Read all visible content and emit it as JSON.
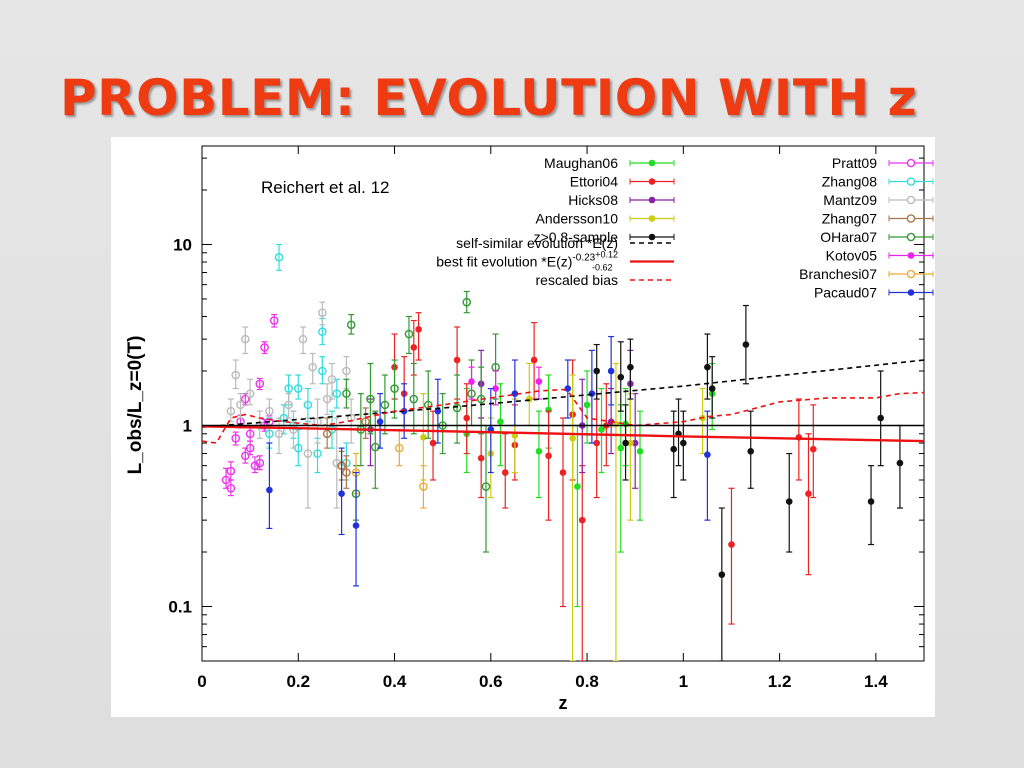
{
  "slide": {
    "title": "PROBLEM: EVOLUTION WITH z",
    "title_color": "#ee3b12"
  },
  "chart_data": {
    "type": "scatter",
    "annotation": "Reichert et al. 12",
    "xlabel": "z",
    "ylabel": "L_obs/L_z=0(T)",
    "x_scale": "linear",
    "y_scale": "log",
    "xlim": [
      0,
      1.5
    ],
    "ylim": [
      0.05,
      35
    ],
    "x_ticks": [
      0,
      0.2,
      0.4,
      0.6,
      0.8,
      1,
      1.2,
      1.4
    ],
    "y_ticks": [
      0.1,
      1,
      10
    ],
    "legend_position": "top",
    "series": [
      {
        "name": "Maughan06",
        "color": "#22dd22",
        "marker": "filled",
        "points": [
          [
            0.55,
            0.9,
            0.55,
            1.6
          ],
          [
            0.62,
            1.05,
            0.6,
            1.7
          ],
          [
            0.7,
            0.72,
            0.4,
            1.2
          ],
          [
            0.72,
            1.22,
            0.75,
            1.9
          ],
          [
            0.78,
            0.46,
            0.1,
            1.0
          ],
          [
            0.8,
            1.3,
            0.8,
            2.0
          ],
          [
            0.83,
            0.95,
            0.55,
            1.6
          ],
          [
            0.87,
            0.75,
            0.2,
            1.3
          ],
          [
            0.88,
            1.02,
            0.6,
            1.6
          ],
          [
            0.91,
            0.72,
            0.3,
            1.2
          ],
          [
            1.06,
            1.5,
            0.95,
            2.2
          ]
        ]
      },
      {
        "name": "Ettori04",
        "color": "#ee2222",
        "marker": "filled",
        "points": [
          [
            0.4,
            2.1,
            1.4,
            3.2
          ],
          [
            0.42,
            1.5,
            1.0,
            2.4
          ],
          [
            0.45,
            3.4,
            2.3,
            4.2
          ],
          [
            0.44,
            2.7,
            1.9,
            3.8
          ],
          [
            0.48,
            0.8,
            0.5,
            1.2
          ],
          [
            0.53,
            2.3,
            1.4,
            3.5
          ],
          [
            0.55,
            1.1,
            0.7,
            1.7
          ],
          [
            0.58,
            0.66,
            0.4,
            1.1
          ],
          [
            0.63,
            0.55,
            0.35,
            0.9
          ],
          [
            0.65,
            0.78,
            0.5,
            1.3
          ],
          [
            0.69,
            2.3,
            1.4,
            3.7
          ],
          [
            0.72,
            0.68,
            0.3,
            1.2
          ],
          [
            0.75,
            0.55,
            0.1,
            1.1
          ],
          [
            0.77,
            1.15,
            0.5,
            2.3
          ],
          [
            0.79,
            0.3,
            0.05,
            0.6
          ],
          [
            0.82,
            0.8,
            0.4,
            1.5
          ],
          [
            0.84,
            1.0,
            0.6,
            1.7
          ],
          [
            1.1,
            0.22,
            0.08,
            0.45
          ],
          [
            1.24,
            0.86,
            0.5,
            1.4
          ],
          [
            1.26,
            0.42,
            0.15,
            0.9
          ],
          [
            1.27,
            0.74,
            0.4,
            1.3
          ]
        ]
      },
      {
        "name": "Hicks08",
        "color": "#8822aa",
        "marker": "filled",
        "points": [
          [
            0.35,
            0.95,
            0.6,
            1.4
          ],
          [
            0.58,
            1.7,
            1.1,
            2.6
          ],
          [
            0.79,
            1.0,
            0.55,
            1.8
          ],
          [
            0.85,
            1.05,
            0.7,
            1.6
          ],
          [
            0.89,
            1.7,
            1.0,
            2.6
          ],
          [
            0.9,
            0.8,
            0.45,
            1.5
          ]
        ]
      },
      {
        "name": "Andersson10",
        "color": "#cccc11",
        "marker": "filled",
        "points": [
          [
            0.46,
            0.86,
            0.5,
            1.5
          ],
          [
            0.6,
            0.7,
            0.4,
            1.1
          ],
          [
            0.65,
            0.88,
            0.55,
            1.4
          ],
          [
            0.68,
            1.4,
            1.0,
            2.2
          ],
          [
            0.77,
            0.85,
            0.05,
            1.9
          ],
          [
            0.86,
            1.02,
            0.05,
            2.2
          ],
          [
            0.89,
            0.8,
            0.3,
            1.5
          ],
          [
            1.04,
            1.1,
            0.7,
            1.6
          ]
        ]
      },
      {
        "name": "z>0.8-sample",
        "color": "#111111",
        "marker": "filled",
        "points": [
          [
            0.82,
            2.0,
            1.4,
            2.8
          ],
          [
            0.87,
            1.85,
            1.2,
            2.9
          ],
          [
            0.89,
            2.1,
            1.4,
            3.0
          ],
          [
            0.88,
            0.8,
            0.5,
            1.3
          ],
          [
            0.98,
            0.74,
            0.4,
            1.2
          ],
          [
            0.99,
            0.9,
            0.6,
            1.4
          ],
          [
            1.0,
            0.8,
            0.5,
            1.2
          ],
          [
            1.05,
            2.1,
            1.4,
            3.2
          ],
          [
            1.06,
            1.6,
            1.1,
            2.4
          ],
          [
            1.08,
            0.15,
            0.05,
            0.35
          ],
          [
            1.13,
            2.8,
            1.7,
            4.6
          ],
          [
            1.14,
            0.72,
            0.45,
            1.2
          ],
          [
            1.22,
            0.38,
            0.2,
            0.7
          ],
          [
            1.39,
            0.38,
            0.22,
            0.6
          ],
          [
            1.41,
            1.1,
            0.6,
            2.0
          ],
          [
            1.45,
            0.62,
            0.35,
            1.0
          ]
        ]
      },
      {
        "name": "Pratt09",
        "color": "#ee33ee",
        "marker": "open",
        "points": [
          [
            0.05,
            0.5,
            0.45,
            0.58
          ],
          [
            0.06,
            0.56,
            0.5,
            0.63
          ],
          [
            0.07,
            0.85,
            0.78,
            0.92
          ],
          [
            0.08,
            1.05,
            0.97,
            1.14
          ],
          [
            0.09,
            0.68,
            0.62,
            0.75
          ],
          [
            0.1,
            0.9,
            0.82,
            0.98
          ],
          [
            0.11,
            0.6,
            0.55,
            0.67
          ],
          [
            0.12,
            1.7,
            1.58,
            1.82
          ],
          [
            0.13,
            2.7,
            2.5,
            2.9
          ],
          [
            0.14,
            1.05,
            0.97,
            1.13
          ],
          [
            0.15,
            3.8,
            3.5,
            4.1
          ],
          [
            0.09,
            1.4,
            1.3,
            1.5
          ],
          [
            0.12,
            0.62,
            0.57,
            0.68
          ],
          [
            0.06,
            0.45,
            0.41,
            0.5
          ],
          [
            0.1,
            0.75,
            0.69,
            0.82
          ],
          [
            0.13,
            1.0,
            0.93,
            1.08
          ]
        ]
      },
      {
        "name": "Zhang08",
        "color": "#33dddd",
        "marker": "open",
        "points": [
          [
            0.16,
            8.5,
            7.2,
            10
          ],
          [
            0.14,
            0.9,
            0.75,
            1.1
          ],
          [
            0.17,
            1.1,
            0.9,
            1.3
          ],
          [
            0.18,
            1.6,
            1.3,
            1.9
          ],
          [
            0.2,
            0.75,
            0.6,
            0.95
          ],
          [
            0.22,
            1.3,
            1.05,
            1.6
          ],
          [
            0.25,
            3.3,
            2.8,
            3.9
          ],
          [
            0.25,
            2.0,
            1.7,
            2.4
          ],
          [
            0.27,
            0.95,
            0.75,
            1.2
          ],
          [
            0.28,
            1.5,
            1.25,
            1.8
          ],
          [
            0.3,
            0.62,
            0.5,
            0.8
          ],
          [
            0.2,
            1.6,
            1.4,
            1.9
          ],
          [
            0.24,
            0.7,
            0.55,
            0.85
          ],
          [
            0.19,
            1.0,
            0.85,
            1.2
          ]
        ]
      },
      {
        "name": "Mantz09",
        "color": "#bbbbbb",
        "marker": "open",
        "points": [
          [
            0.07,
            1.9,
            1.6,
            2.3
          ],
          [
            0.09,
            3.0,
            2.5,
            3.5
          ],
          [
            0.06,
            1.2,
            1.05,
            1.4
          ],
          [
            0.08,
            1.3,
            1.1,
            1.5
          ],
          [
            0.1,
            1.5,
            1.3,
            1.8
          ],
          [
            0.12,
            1.0,
            0.85,
            1.2
          ],
          [
            0.14,
            1.2,
            1.0,
            1.4
          ],
          [
            0.16,
            0.9,
            0.7,
            1.1
          ],
          [
            0.18,
            1.3,
            1.1,
            1.5
          ],
          [
            0.21,
            3.0,
            2.5,
            3.5
          ],
          [
            0.23,
            2.1,
            1.7,
            2.5
          ],
          [
            0.25,
            4.2,
            3.6,
            4.8
          ],
          [
            0.26,
            1.4,
            1.15,
            1.7
          ],
          [
            0.28,
            0.62,
            0.35,
            1.1
          ],
          [
            0.3,
            2.0,
            1.6,
            2.4
          ],
          [
            0.22,
            0.7,
            0.35,
            1.1
          ],
          [
            0.24,
            1.05,
            0.8,
            1.4
          ],
          [
            0.19,
            0.95,
            0.75,
            1.2
          ],
          [
            0.27,
            1.8,
            1.4,
            2.2
          ],
          [
            0.31,
            1.1,
            0.8,
            1.4
          ]
        ]
      },
      {
        "name": "Zhang07",
        "color": "#aa7744",
        "marker": "open",
        "points": [
          [
            0.3,
            0.55,
            0.45,
            0.68
          ],
          [
            0.29,
            0.6,
            0.5,
            0.72
          ],
          [
            0.26,
            0.9,
            0.75,
            1.1
          ],
          [
            0.34,
            1.05,
            0.85,
            1.25
          ]
        ]
      },
      {
        "name": "OHara07",
        "color": "#339933",
        "marker": "open",
        "points": [
          [
            0.31,
            3.6,
            3.2,
            4.1
          ],
          [
            0.3,
            1.5,
            1.25,
            1.8
          ],
          [
            0.33,
            0.95,
            0.6,
            1.5
          ],
          [
            0.35,
            1.4,
            0.9,
            2.2
          ],
          [
            0.36,
            0.76,
            0.45,
            1.2
          ],
          [
            0.38,
            1.3,
            0.9,
            1.9
          ],
          [
            0.4,
            1.6,
            1.1,
            2.3
          ],
          [
            0.43,
            3.2,
            2.5,
            4.0
          ],
          [
            0.44,
            1.4,
            0.9,
            2.2
          ],
          [
            0.47,
            1.3,
            0.85,
            2.0
          ],
          [
            0.5,
            1.0,
            0.7,
            1.5
          ],
          [
            0.53,
            1.25,
            0.8,
            1.9
          ],
          [
            0.55,
            4.8,
            4.2,
            5.5
          ],
          [
            0.56,
            1.5,
            1.0,
            2.3
          ],
          [
            0.58,
            1.4,
            0.9,
            2.1
          ],
          [
            0.59,
            0.46,
            0.2,
            1.0
          ],
          [
            0.61,
            2.1,
            1.4,
            3.2
          ],
          [
            0.32,
            0.42,
            0.3,
            0.6
          ]
        ]
      },
      {
        "name": "Kotov05",
        "color": "#ee22ee",
        "marker": "filled",
        "points": [
          [
            0.56,
            1.75,
            1.4,
            2.1
          ],
          [
            0.61,
            1.6,
            1.3,
            2.0
          ],
          [
            0.7,
            1.75,
            1.4,
            2.1
          ]
        ]
      },
      {
        "name": "Branchesi07",
        "color": "#eeaa33",
        "marker": "open",
        "points": [
          [
            0.41,
            0.75,
            0.6,
            0.95
          ],
          [
            0.46,
            0.46,
            0.35,
            0.6
          ],
          [
            0.32,
            0.55,
            0.42,
            0.7
          ]
        ]
      },
      {
        "name": "Pacaud07",
        "color": "#2233dd",
        "marker": "filled",
        "points": [
          [
            0.14,
            0.44,
            0.27,
            0.8
          ],
          [
            0.29,
            0.42,
            0.25,
            0.75
          ],
          [
            0.32,
            0.28,
            0.13,
            0.55
          ],
          [
            0.37,
            1.05,
            0.75,
            1.5
          ],
          [
            0.42,
            1.2,
            0.85,
            1.7
          ],
          [
            0.49,
            1.2,
            0.8,
            1.8
          ],
          [
            0.6,
            0.95,
            0.55,
            1.6
          ],
          [
            0.65,
            1.5,
            1.0,
            2.3
          ],
          [
            0.76,
            1.6,
            1.1,
            2.3
          ],
          [
            0.81,
            1.5,
            0.8,
            2.6
          ],
          [
            0.85,
            2.0,
            1.3,
            3.1
          ],
          [
            1.05,
            0.69,
            0.3,
            1.2
          ]
        ]
      }
    ],
    "lines": [
      {
        "name": "self-similar evolution *E(z)",
        "color": "#000000",
        "style": "dashed",
        "points": [
          [
            0,
            0.98
          ],
          [
            0.5,
            1.25
          ],
          [
            1.0,
            1.65
          ],
          [
            1.5,
            2.3
          ]
        ]
      },
      {
        "name": "best fit evolution *E(z)",
        "name_sup": "-0.23",
        "name_sup2": "+0.12",
        "name_sub2": "-0.62",
        "color": "#ee1111",
        "style": "solid",
        "points": [
          [
            0,
            0.99
          ],
          [
            0.5,
            0.93
          ],
          [
            1.0,
            0.87
          ],
          [
            1.5,
            0.82
          ]
        ]
      },
      {
        "name": "rescaled bias",
        "color": "#ee1111",
        "style": "dashed",
        "points": [
          [
            0,
            0.82
          ],
          [
            0.03,
            0.8
          ],
          [
            0.06,
            1.1
          ],
          [
            0.09,
            1.15
          ],
          [
            0.12,
            1.1
          ],
          [
            0.17,
            1.05
          ],
          [
            0.25,
            1.0
          ],
          [
            0.3,
            1.05
          ],
          [
            0.4,
            1.2
          ],
          [
            0.5,
            1.3
          ],
          [
            0.6,
            1.42
          ],
          [
            0.7,
            1.55
          ],
          [
            0.75,
            1.58
          ],
          [
            0.76,
            1.55
          ],
          [
            0.8,
            1.1
          ],
          [
            0.9,
            1.0
          ],
          [
            1.0,
            1.05
          ],
          [
            1.05,
            1.12
          ],
          [
            1.1,
            1.15
          ],
          [
            1.2,
            1.35
          ],
          [
            1.3,
            1.42
          ],
          [
            1.4,
            1.42
          ],
          [
            1.45,
            1.5
          ],
          [
            1.5,
            1.52
          ]
        ]
      },
      {
        "name": "",
        "color": "#000000",
        "style": "solid",
        "points": [
          [
            0,
            1
          ],
          [
            1.5,
            1
          ]
        ]
      }
    ]
  }
}
